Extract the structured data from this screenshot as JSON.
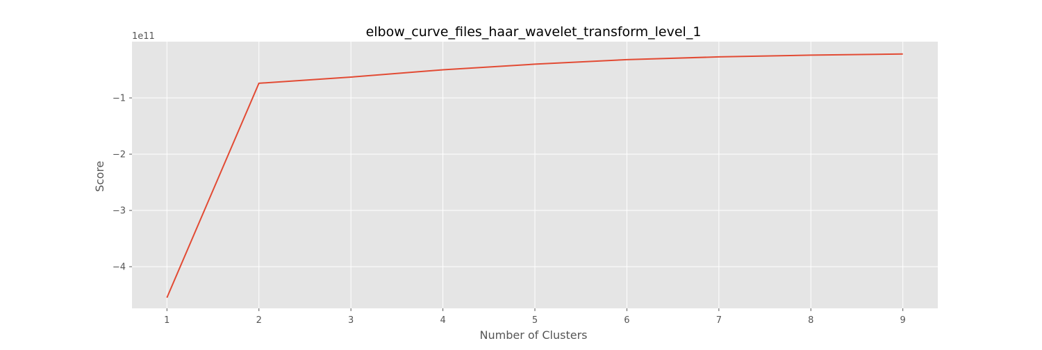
{
  "chart_data": {
    "type": "line",
    "title": "elbow_curve_files_haar_wavelet_transform_level_1",
    "xlabel": "Number of Clusters",
    "ylabel": "Score",
    "y_offset_label": "1e11",
    "x": [
      1,
      2,
      3,
      4,
      5,
      6,
      7,
      8,
      9
    ],
    "series": [
      {
        "values": [
          -4.55,
          -0.74,
          -0.63,
          -0.5,
          -0.4,
          -0.32,
          -0.27,
          -0.24,
          -0.22
        ]
      }
    ],
    "xlim": [
      0.62,
      9.38
    ],
    "ylim": [
      -4.74,
      0.0
    ],
    "x_ticks": [
      1,
      2,
      3,
      4,
      5,
      6,
      7,
      8,
      9
    ],
    "y_ticks": [
      -4,
      -3,
      -2,
      -1
    ],
    "y_tick_labels": [
      "−4",
      "−3",
      "−2",
      "−1"
    ],
    "grid": true,
    "line_color": "#E24A33",
    "background_color": "#E5E5E5",
    "grid_color": "#FFFFFF"
  }
}
